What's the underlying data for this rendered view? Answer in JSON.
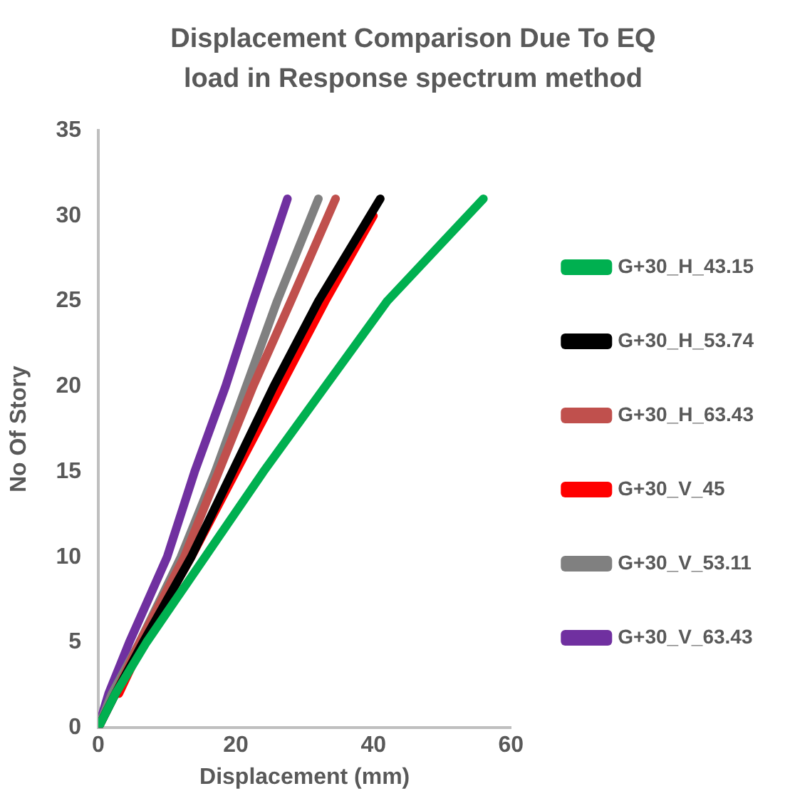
{
  "chart_data": {
    "type": "line",
    "title": "Displacement Comparison Due To EQ load in Response spectrum method",
    "xlabel": "Displacement (mm)",
    "ylabel": "No Of Story",
    "xlim": [
      0,
      60
    ],
    "xticks": [
      0,
      20,
      40,
      60
    ],
    "ylim": [
      0,
      35
    ],
    "yticks": [
      0,
      5,
      10,
      15,
      20,
      25,
      30,
      35
    ],
    "grid": false,
    "legend": "right",
    "marker": "none",
    "line_style": "solid",
    "series": [
      {
        "name": "G+30_H_43.15",
        "color": "#00b050",
        "x": [
          0,
          2.5,
          7,
          15.5,
          24,
          33,
          42,
          56
        ],
        "values": [
          0,
          2,
          5,
          10,
          15,
          20,
          25,
          31
        ]
      },
      {
        "name": "G+30_H_53.74",
        "color": "#000000",
        "x": [
          0,
          2.5,
          6.5,
          13.5,
          19.5,
          25.5,
          32,
          41
        ],
        "values": [
          0,
          2,
          5,
          10,
          15,
          20,
          25,
          31
        ]
      },
      {
        "name": "G+30_H_63.43",
        "color": "#c0504d",
        "x": [
          0,
          2.5,
          6,
          12.5,
          17.5,
          22.5,
          28,
          34.5
        ],
        "values": [
          0,
          2,
          5,
          10,
          15,
          20,
          25,
          31
        ]
      },
      {
        "name": "G+30_V_45",
        "color": "#ff0000",
        "x": [
          3,
          6.5,
          13.5,
          20,
          26.5,
          33,
          40
        ],
        "values": [
          2,
          5,
          10,
          15,
          20,
          25,
          30
        ]
      },
      {
        "name": "G+30_V_53.11",
        "color": "#808080",
        "x": [
          0,
          2,
          6,
          12,
          17,
          21.5,
          26,
          32
        ],
        "values": [
          0,
          2,
          5,
          10,
          15,
          20,
          25,
          31
        ]
      },
      {
        "name": "G+30_V_63.43",
        "color": "#7030a0",
        "x": [
          0,
          1.5,
          4.5,
          10,
          14,
          18.5,
          22.5,
          27.5
        ],
        "values": [
          0,
          2,
          5,
          10,
          15,
          20,
          25,
          31
        ]
      }
    ]
  }
}
